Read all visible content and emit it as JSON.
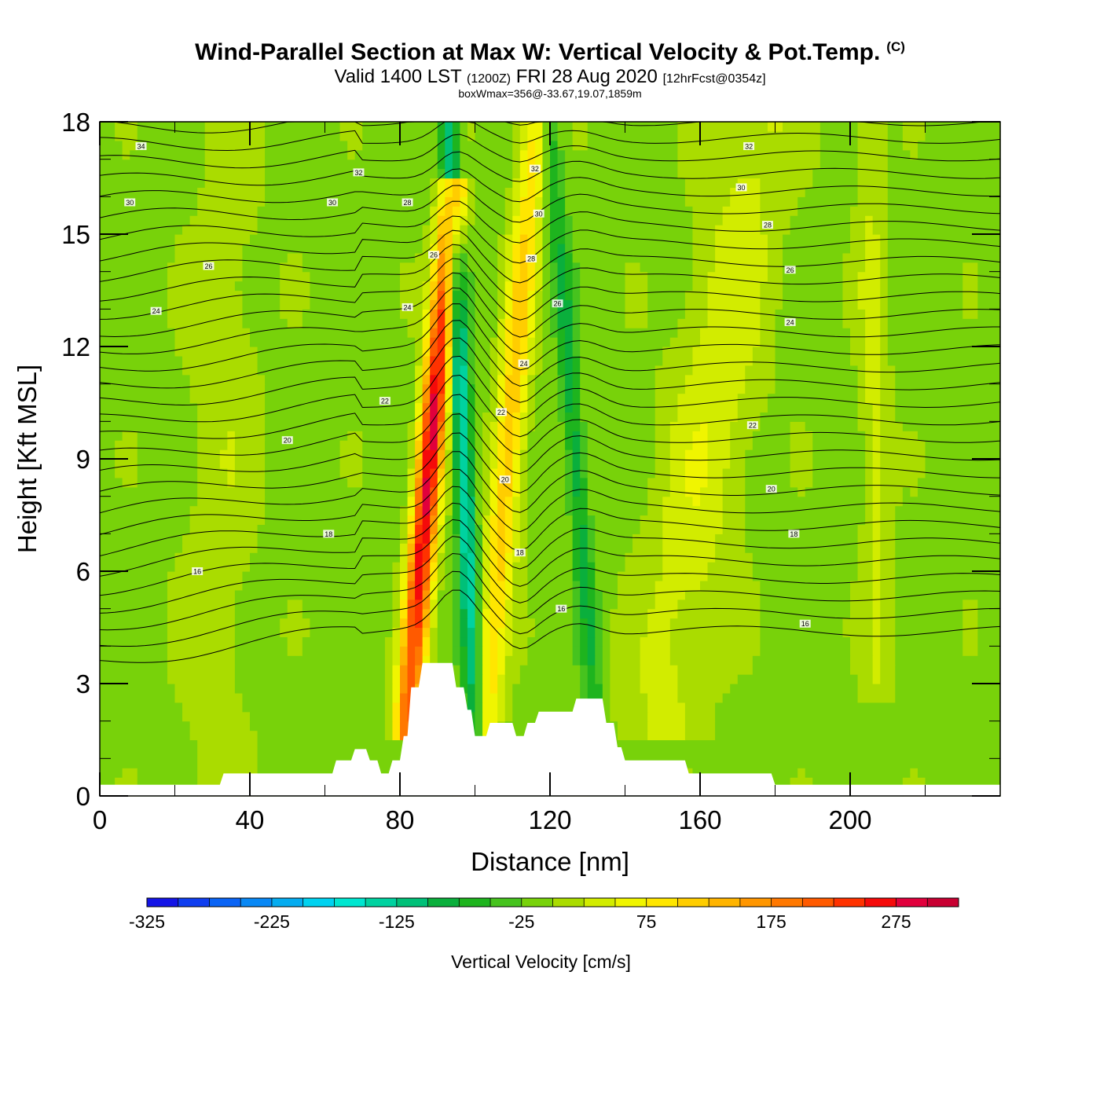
{
  "title": {
    "main": "Wind-Parallel Section at Max W: Vertical Velocity & Pot.Temp.",
    "copyright": "(C)",
    "valid_a": "Valid 1400 LST",
    "valid_b": "(1200Z)",
    "valid_c": "FRI 28 Aug 2020",
    "valid_d": "[12hrFcst@0354z]",
    "box": "boxWmax=356@-33.67,19.07,1859m"
  },
  "chart_data": {
    "type": "heatmap",
    "title": "Wind-Parallel Section at Max W: Vertical Velocity & Pot.Temp.",
    "xlabel": "Distance [nm]",
    "ylabel": "Height [Kft MSL]",
    "xlim": [
      0,
      240
    ],
    "ylim": [
      0,
      18
    ],
    "xticks": [
      0,
      40,
      80,
      120,
      160,
      200
    ],
    "yticks": [
      0,
      3,
      6,
      9,
      12,
      15,
      18
    ],
    "terrain": {
      "x": [
        0,
        32,
        33,
        62,
        63,
        67,
        68,
        71,
        72,
        74,
        75,
        77,
        78,
        80,
        81,
        82,
        83,
        85,
        86,
        94,
        95,
        97,
        98,
        99,
        100,
        103,
        104,
        106,
        107,
        110,
        111,
        113,
        114,
        116,
        117,
        119,
        120,
        126,
        127,
        134,
        135,
        137,
        138,
        139,
        140,
        142,
        143,
        156,
        157,
        179,
        180,
        240
      ],
      "h": [
        0.3,
        0.3,
        0.6,
        0.6,
        0.95,
        0.95,
        1.25,
        1.25,
        0.95,
        0.95,
        0.6,
        0.6,
        0.95,
        0.95,
        1.6,
        1.6,
        2.9,
        2.9,
        3.55,
        3.55,
        2.9,
        2.9,
        2.3,
        2.3,
        1.6,
        1.6,
        1.95,
        1.95,
        1.95,
        1.95,
        1.6,
        1.6,
        1.95,
        1.95,
        2.25,
        2.25,
        2.25,
        2.25,
        2.6,
        2.6,
        1.95,
        1.95,
        1.3,
        1.3,
        0.95,
        0.95,
        0.95,
        0.95,
        0.6,
        0.6,
        0.3,
        0.3
      ]
    },
    "w_field": {
      "units": "cm/s",
      "base": -10,
      "features": [
        {
          "name": "updraft-core",
          "x_bottom": 82,
          "x_top": 94,
          "z_bottom": 2,
          "z_top": 16,
          "width": 3.5,
          "amplitude": 300
        },
        {
          "name": "updraft-east",
          "x_bottom": 103,
          "x_top": 116,
          "z_bottom": 2,
          "z_top": 18,
          "width": 4,
          "amplitude": 130
        },
        {
          "name": "downdraft-core",
          "x_bottom": 100,
          "x_top": 93,
          "z_bottom": 2,
          "z_top": 18,
          "width": 2.6,
          "amplitude": -150
        },
        {
          "name": "downdraft-east",
          "x_bottom": 133,
          "x_top": 120,
          "z_bottom": 1,
          "z_top": 18,
          "width": 2.6,
          "amplitude": -80
        },
        {
          "name": "broad-updraft",
          "x_bottom": 150,
          "x_top": 175,
          "z_bottom": 2,
          "z_top": 18,
          "width": 12,
          "amplitude": 55
        },
        {
          "name": "band-west",
          "x_bottom": 30,
          "x_top": 35,
          "z_bottom": 0,
          "z_top": 18,
          "width": 10,
          "amplitude": 28
        },
        {
          "name": "band-far-east",
          "x_bottom": 208,
          "x_top": 205,
          "z_bottom": 3,
          "z_top": 18,
          "width": 4,
          "amplitude": 45
        }
      ]
    },
    "theta_labels": [
      {
        "x": 11,
        "z": 17.35,
        "text": "34"
      },
      {
        "x": 8,
        "z": 15.85,
        "text": "30"
      },
      {
        "x": 29,
        "z": 14.15,
        "text": "26"
      },
      {
        "x": 15,
        "z": 12.95,
        "text": "24"
      },
      {
        "x": 69,
        "z": 16.65,
        "text": "32"
      },
      {
        "x": 62,
        "z": 15.85,
        "text": "30"
      },
      {
        "x": 82,
        "z": 15.85,
        "text": "28"
      },
      {
        "x": 89,
        "z": 14.45,
        "text": "26"
      },
      {
        "x": 82,
        "z": 13.05,
        "text": "24"
      },
      {
        "x": 76,
        "z": 10.55,
        "text": "22"
      },
      {
        "x": 50,
        "z": 9.5,
        "text": "20"
      },
      {
        "x": 61,
        "z": 7.0,
        "text": "18"
      },
      {
        "x": 26,
        "z": 6.0,
        "text": "16"
      },
      {
        "x": 116,
        "z": 16.75,
        "text": "32"
      },
      {
        "x": 117,
        "z": 15.55,
        "text": "30"
      },
      {
        "x": 115,
        "z": 14.35,
        "text": "28"
      },
      {
        "x": 122,
        "z": 13.15,
        "text": "26"
      },
      {
        "x": 113,
        "z": 11.55,
        "text": "24"
      },
      {
        "x": 107,
        "z": 10.25,
        "text": "22"
      },
      {
        "x": 108,
        "z": 8.45,
        "text": "20"
      },
      {
        "x": 112,
        "z": 6.5,
        "text": "18"
      },
      {
        "x": 123,
        "z": 5.0,
        "text": "16"
      },
      {
        "x": 173,
        "z": 17.35,
        "text": "32"
      },
      {
        "x": 171,
        "z": 16.25,
        "text": "30"
      },
      {
        "x": 178,
        "z": 15.25,
        "text": "28"
      },
      {
        "x": 184,
        "z": 14.05,
        "text": "26"
      },
      {
        "x": 184,
        "z": 12.65,
        "text": "24"
      },
      {
        "x": 174,
        "z": 9.9,
        "text": "22"
      },
      {
        "x": 179,
        "z": 8.2,
        "text": "20"
      },
      {
        "x": 185,
        "z": 7.0,
        "text": "18"
      },
      {
        "x": 188,
        "z": 4.6,
        "text": "16"
      }
    ],
    "colorbar": {
      "label": "Vertical Velocity [cm/s]",
      "min": -325,
      "max": 325,
      "step": 25,
      "ticks": [
        -325,
        -225,
        -125,
        -25,
        75,
        175,
        275
      ],
      "colors": [
        "#1414e6",
        "#0f3ef0",
        "#0a64f5",
        "#0888f5",
        "#05acf0",
        "#00d2f0",
        "#00e6d0",
        "#00d2a0",
        "#00c078",
        "#0aaf3c",
        "#1eb41e",
        "#46c31e",
        "#78d20a",
        "#aadc00",
        "#d2ec00",
        "#f0f500",
        "#ffe600",
        "#ffcd00",
        "#ffb400",
        "#ff9600",
        "#ff7800",
        "#ff5a00",
        "#ff3200",
        "#f50a0a",
        "#e1003c",
        "#c80032"
      ]
    }
  }
}
